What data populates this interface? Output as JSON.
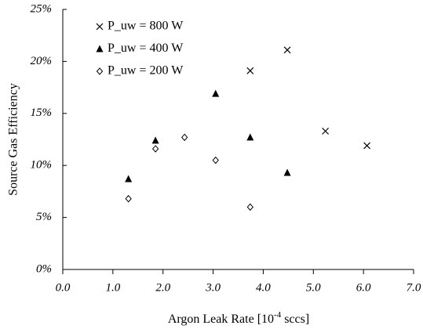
{
  "chart_data": {
    "type": "scatter",
    "x_label": {
      "text": "Argon Leak Rate [10",
      "sup": "-4",
      "tail": " sccs]"
    },
    "y_label": "Source Gas Efficiency",
    "xlim": [
      0,
      7
    ],
    "ylim": [
      0,
      25
    ],
    "xticks": [
      {
        "value": 0,
        "label": "0.0"
      },
      {
        "value": 1,
        "label": "1.0"
      },
      {
        "value": 2,
        "label": "2.0"
      },
      {
        "value": 3,
        "label": "3.0"
      },
      {
        "value": 4,
        "label": "4.0"
      },
      {
        "value": 5,
        "label": "5.0"
      },
      {
        "value": 6,
        "label": "6.0"
      },
      {
        "value": 7,
        "label": "7.0"
      }
    ],
    "yticks": [
      {
        "value": 0,
        "label": "0%"
      },
      {
        "value": 5,
        "label": "5%"
      },
      {
        "value": 10,
        "label": "10%"
      },
      {
        "value": 15,
        "label": "15%"
      },
      {
        "value": 20,
        "label": "20%"
      },
      {
        "value": 25,
        "label": "25%"
      }
    ],
    "legend": "upper left",
    "series": [
      {
        "name": "P_uw = 800 W",
        "marker": "x",
        "color": "#000000",
        "x": [
          3.74,
          4.48,
          5.24,
          6.07
        ],
        "values": [
          19.1,
          21.1,
          13.3,
          11.9
        ]
      },
      {
        "name": "P_uw = 400 W",
        "marker": "triangle",
        "color": "#000000",
        "x": [
          1.31,
          1.85,
          3.05,
          3.74,
          4.48
        ],
        "values": [
          8.7,
          12.4,
          16.9,
          12.7,
          9.3
        ]
      },
      {
        "name": "P_uw = 200 W",
        "marker": "diamond",
        "color": "#000000",
        "x": [
          1.31,
          1.85,
          2.43,
          3.05,
          3.74
        ],
        "values": [
          6.8,
          11.6,
          12.7,
          10.5,
          6.0
        ]
      }
    ]
  }
}
